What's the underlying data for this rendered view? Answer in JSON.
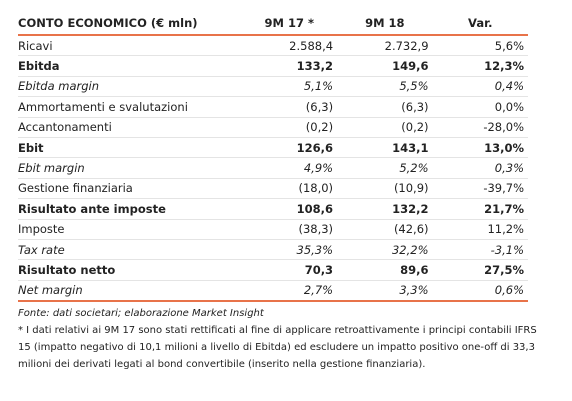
{
  "table": {
    "header": [
      "CONTO ECONOMICO (€ mln)",
      "9M 17 *",
      "9M 18",
      "Var."
    ],
    "rows": [
      [
        "Ricavi",
        "2.588,4",
        "2.732,9",
        "5,6%"
      ],
      [
        "Ebitda",
        "133,2",
        "149,6",
        "12,3%"
      ],
      [
        "Ebitda margin",
        "5,1%",
        "5,5%",
        "0,4%"
      ],
      [
        "Ammortamenti e svalutazioni",
        "(6,3)",
        "(6,3)",
        "0,0%"
      ],
      [
        "Accantonamenti",
        "(0,2)",
        "(0,2)",
        "-28,0%"
      ],
      [
        "Ebit",
        "126,6",
        "143,1",
        "13,0%"
      ],
      [
        "Ebit margin",
        "4,9%",
        "5,2%",
        "0,3%"
      ],
      [
        "Gestione finanziaria",
        "(18,0)",
        "(10,9)",
        "-39,7%"
      ],
      [
        "Risultato ante imposte",
        "108,6",
        "132,2",
        "21,7%"
      ],
      [
        "Imposte",
        "(38,3)",
        "(42,6)",
        "11,2%"
      ],
      [
        "Tax rate",
        "35,3%",
        "32,2%",
        "-3,1%"
      ],
      [
        "Risultato netto",
        "70,3",
        "89,6",
        "27,5%"
      ],
      [
        "Net margin",
        "2,7%",
        "3,3%",
        "0,6%"
      ]
    ]
  },
  "notes": {
    "source": "Fonte: dati societari; elaborazione Market Insight",
    "footnote": "* I dati relativi ai 9M 17 sono stati rettificati al fine di applicare retroattivamente i principi contabili IFRS 15 (impatto negativo di 10,1 milioni a livello di Ebitda) ed escludere un impatto positivo one-off di 33,3 milioni dei derivati legati al bond convertibile (inserito nella gestione finanziaria)."
  }
}
